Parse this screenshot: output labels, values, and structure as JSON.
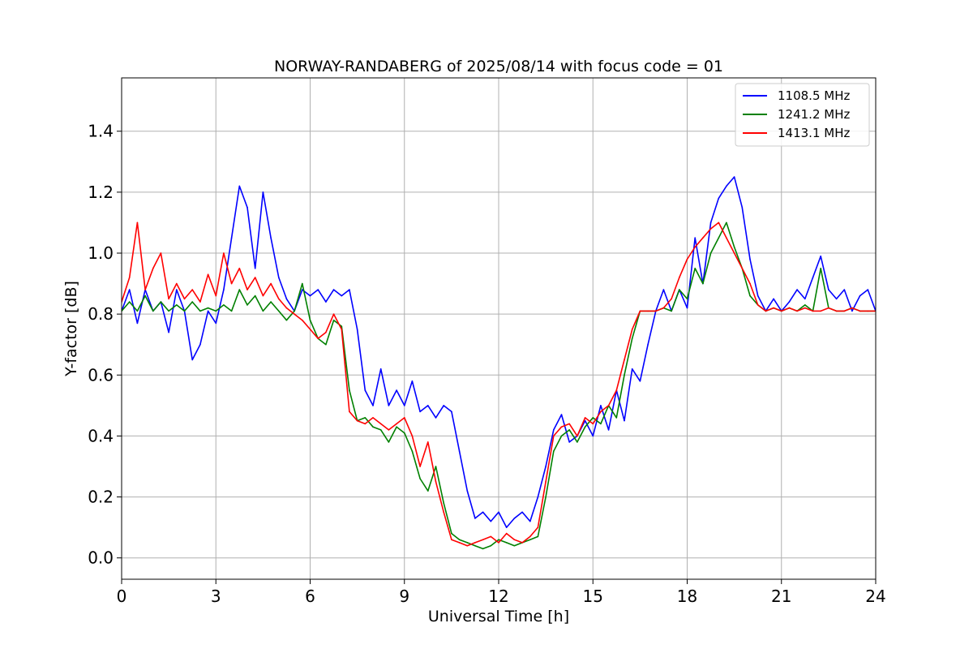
{
  "chart_data": {
    "type": "line",
    "title": "NORWAY-RANDABERG of 2025/08/14 with focus code = 01",
    "xlabel": "Universal Time [h]",
    "ylabel": "Y-factor [dB]",
    "xlim": [
      0,
      24
    ],
    "ylim": [
      -0.07,
      1.575
    ],
    "xticks": [
      0,
      3,
      6,
      9,
      12,
      15,
      18,
      21,
      24
    ],
    "yticks": [
      0.0,
      0.2,
      0.4,
      0.6,
      0.8,
      1.0,
      1.2,
      1.4
    ],
    "xtick_labels": [
      "0",
      "3",
      "6",
      "9",
      "12",
      "15",
      "18",
      "21",
      "24"
    ],
    "ytick_labels": [
      "0.0",
      "0.2",
      "0.4",
      "0.6",
      "0.8",
      "1.0",
      "1.2",
      "1.4"
    ],
    "grid": true,
    "legend_position": "top-right",
    "series": [
      {
        "name": "1108.5 MHz",
        "color": "#0000ff",
        "x": [
          0.0,
          0.25,
          0.5,
          0.75,
          1.0,
          1.25,
          1.5,
          1.75,
          2.0,
          2.25,
          2.5,
          2.75,
          3.0,
          3.25,
          3.5,
          3.75,
          4.0,
          4.25,
          4.5,
          4.75,
          5.0,
          5.25,
          5.5,
          5.75,
          6.0,
          6.25,
          6.5,
          6.75,
          7.0,
          7.25,
          7.5,
          7.75,
          8.0,
          8.25,
          8.5,
          8.75,
          9.0,
          9.25,
          9.5,
          9.75,
          10.0,
          10.25,
          10.5,
          10.75,
          11.0,
          11.25,
          11.5,
          11.75,
          12.0,
          12.25,
          12.5,
          12.75,
          13.0,
          13.25,
          13.5,
          13.75,
          14.0,
          14.25,
          14.5,
          14.75,
          15.0,
          15.25,
          15.5,
          15.75,
          16.0,
          16.25,
          16.5,
          16.75,
          17.0,
          17.25,
          17.5,
          17.75,
          18.0,
          18.25,
          18.5,
          18.75,
          19.0,
          19.25,
          19.5,
          19.75,
          20.0,
          20.25,
          20.5,
          20.75,
          21.0,
          21.25,
          21.5,
          21.75,
          22.0,
          22.25,
          22.5,
          22.75,
          23.0,
          23.25,
          23.5,
          23.75,
          24.0
        ],
        "y": [
          0.81,
          0.88,
          0.77,
          0.88,
          0.81,
          0.84,
          0.74,
          0.88,
          0.81,
          0.65,
          0.7,
          0.81,
          0.77,
          0.88,
          1.05,
          1.22,
          1.15,
          0.95,
          1.2,
          1.05,
          0.92,
          0.85,
          0.81,
          0.88,
          0.86,
          0.88,
          0.84,
          0.88,
          0.86,
          0.88,
          0.75,
          0.55,
          0.5,
          0.62,
          0.5,
          0.55,
          0.5,
          0.58,
          0.48,
          0.5,
          0.46,
          0.5,
          0.48,
          0.35,
          0.22,
          0.13,
          0.15,
          0.12,
          0.15,
          0.1,
          0.13,
          0.15,
          0.12,
          0.2,
          0.3,
          0.42,
          0.47,
          0.38,
          0.4,
          0.45,
          0.4,
          0.5,
          0.42,
          0.55,
          0.45,
          0.62,
          0.58,
          0.7,
          0.81,
          0.88,
          0.81,
          0.88,
          0.82,
          1.05,
          0.9,
          1.1,
          1.18,
          1.22,
          1.25,
          1.15,
          0.98,
          0.86,
          0.81,
          0.85,
          0.81,
          0.84,
          0.88,
          0.85,
          0.92,
          0.99,
          0.88,
          0.85,
          0.88,
          0.81,
          0.86,
          0.88,
          0.81
        ]
      },
      {
        "name": "1241.2 MHz",
        "color": "#008000",
        "x": [
          0.0,
          0.25,
          0.5,
          0.75,
          1.0,
          1.25,
          1.5,
          1.75,
          2.0,
          2.25,
          2.5,
          2.75,
          3.0,
          3.25,
          3.5,
          3.75,
          4.0,
          4.25,
          4.5,
          4.75,
          5.0,
          5.25,
          5.5,
          5.75,
          6.0,
          6.25,
          6.5,
          6.75,
          7.0,
          7.25,
          7.5,
          7.75,
          8.0,
          8.25,
          8.5,
          8.75,
          9.0,
          9.25,
          9.5,
          9.75,
          10.0,
          10.25,
          10.5,
          10.75,
          11.0,
          11.25,
          11.5,
          11.75,
          12.0,
          12.25,
          12.5,
          12.75,
          13.0,
          13.25,
          13.5,
          13.75,
          14.0,
          14.25,
          14.5,
          14.75,
          15.0,
          15.25,
          15.5,
          15.75,
          16.0,
          16.25,
          16.5,
          16.75,
          17.0,
          17.25,
          17.5,
          17.75,
          18.0,
          18.25,
          18.5,
          18.75,
          19.0,
          19.25,
          19.5,
          19.75,
          20.0,
          20.25,
          20.5,
          20.75,
          21.0,
          21.25,
          21.5,
          21.75,
          22.0,
          22.25,
          22.5,
          22.75,
          23.0,
          23.25,
          23.5,
          23.75,
          24.0
        ],
        "y": [
          0.81,
          0.84,
          0.81,
          0.86,
          0.81,
          0.84,
          0.81,
          0.83,
          0.81,
          0.84,
          0.81,
          0.82,
          0.81,
          0.83,
          0.81,
          0.88,
          0.83,
          0.86,
          0.81,
          0.84,
          0.81,
          0.78,
          0.81,
          0.9,
          0.78,
          0.72,
          0.7,
          0.78,
          0.76,
          0.55,
          0.45,
          0.46,
          0.43,
          0.42,
          0.38,
          0.43,
          0.41,
          0.35,
          0.26,
          0.22,
          0.3,
          0.18,
          0.08,
          0.06,
          0.05,
          0.04,
          0.03,
          0.04,
          0.06,
          0.05,
          0.04,
          0.05,
          0.06,
          0.07,
          0.2,
          0.35,
          0.4,
          0.42,
          0.38,
          0.43,
          0.46,
          0.44,
          0.5,
          0.46,
          0.6,
          0.72,
          0.81,
          0.81,
          0.81,
          0.82,
          0.81,
          0.88,
          0.85,
          0.95,
          0.9,
          1.0,
          1.05,
          1.1,
          1.02,
          0.95,
          0.86,
          0.83,
          0.81,
          0.82,
          0.81,
          0.82,
          0.81,
          0.83,
          0.81,
          0.95,
          0.82,
          0.81,
          0.81,
          0.82,
          0.81,
          0.81,
          0.81
        ]
      },
      {
        "name": "1413.1 MHz",
        "color": "#ff0000",
        "x": [
          0.0,
          0.25,
          0.5,
          0.75,
          1.0,
          1.25,
          1.5,
          1.75,
          2.0,
          2.25,
          2.5,
          2.75,
          3.0,
          3.25,
          3.5,
          3.75,
          4.0,
          4.25,
          4.5,
          4.75,
          5.0,
          5.25,
          5.5,
          5.75,
          6.0,
          6.25,
          6.5,
          6.75,
          7.0,
          7.25,
          7.5,
          7.75,
          8.0,
          8.25,
          8.5,
          8.75,
          9.0,
          9.25,
          9.5,
          9.75,
          10.0,
          10.25,
          10.5,
          10.75,
          11.0,
          11.25,
          11.5,
          11.75,
          12.0,
          12.25,
          12.5,
          12.75,
          13.0,
          13.25,
          13.5,
          13.75,
          14.0,
          14.25,
          14.5,
          14.75,
          15.0,
          15.25,
          15.5,
          15.75,
          16.0,
          16.25,
          16.5,
          16.75,
          17.0,
          17.25,
          17.5,
          17.75,
          18.0,
          18.25,
          18.5,
          18.75,
          19.0,
          19.25,
          19.5,
          19.75,
          20.0,
          20.25,
          20.5,
          20.75,
          21.0,
          21.25,
          21.5,
          21.75,
          22.0,
          22.25,
          22.5,
          22.75,
          23.0,
          23.25,
          23.5,
          23.75,
          24.0
        ],
        "y": [
          0.84,
          0.92,
          1.1,
          0.88,
          0.95,
          1.0,
          0.85,
          0.9,
          0.85,
          0.88,
          0.84,
          0.93,
          0.86,
          1.0,
          0.9,
          0.95,
          0.88,
          0.92,
          0.86,
          0.9,
          0.85,
          0.82,
          0.8,
          0.78,
          0.75,
          0.72,
          0.74,
          0.8,
          0.75,
          0.48,
          0.45,
          0.44,
          0.46,
          0.44,
          0.42,
          0.44,
          0.46,
          0.4,
          0.3,
          0.38,
          0.25,
          0.15,
          0.06,
          0.05,
          0.04,
          0.05,
          0.06,
          0.07,
          0.05,
          0.08,
          0.06,
          0.05,
          0.07,
          0.1,
          0.25,
          0.4,
          0.43,
          0.44,
          0.4,
          0.46,
          0.44,
          0.48,
          0.5,
          0.55,
          0.65,
          0.75,
          0.81,
          0.81,
          0.81,
          0.82,
          0.85,
          0.92,
          0.98,
          1.02,
          1.05,
          1.08,
          1.1,
          1.05,
          1.0,
          0.95,
          0.9,
          0.83,
          0.81,
          0.82,
          0.81,
          0.82,
          0.81,
          0.82,
          0.81,
          0.81,
          0.82,
          0.81,
          0.81,
          0.82,
          0.81,
          0.81,
          0.81
        ]
      }
    ],
    "annotations": []
  }
}
